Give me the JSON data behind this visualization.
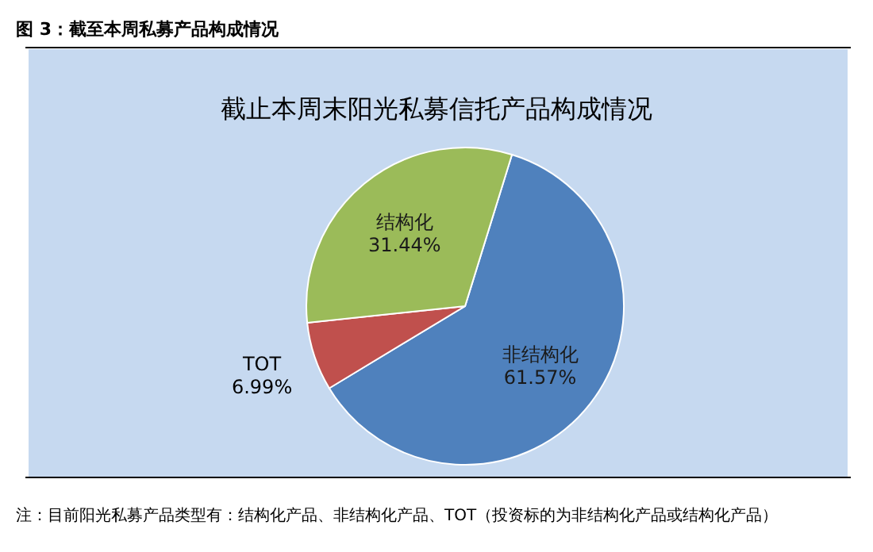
{
  "chart_data": {
    "type": "pie",
    "title": "图 3：截至本周私募产品构成情况",
    "subtitle": "截止本周末阳光私募信托产品构成情况",
    "categories": [
      "非结构化",
      "TOT",
      "结构化"
    ],
    "values": [
      61.57,
      6.99,
      31.44
    ],
    "colors": [
      "#4f81bd",
      "#c0504d",
      "#9bbb59"
    ],
    "value_labels": [
      "61.57%",
      "6.99%",
      "31.44%"
    ],
    "annotations": [
      "注：目前阳光私募产品类型有：结构化产品、非结构化产品、TOT（投资标的为非结构化产品或结构化产品）"
    ]
  }
}
